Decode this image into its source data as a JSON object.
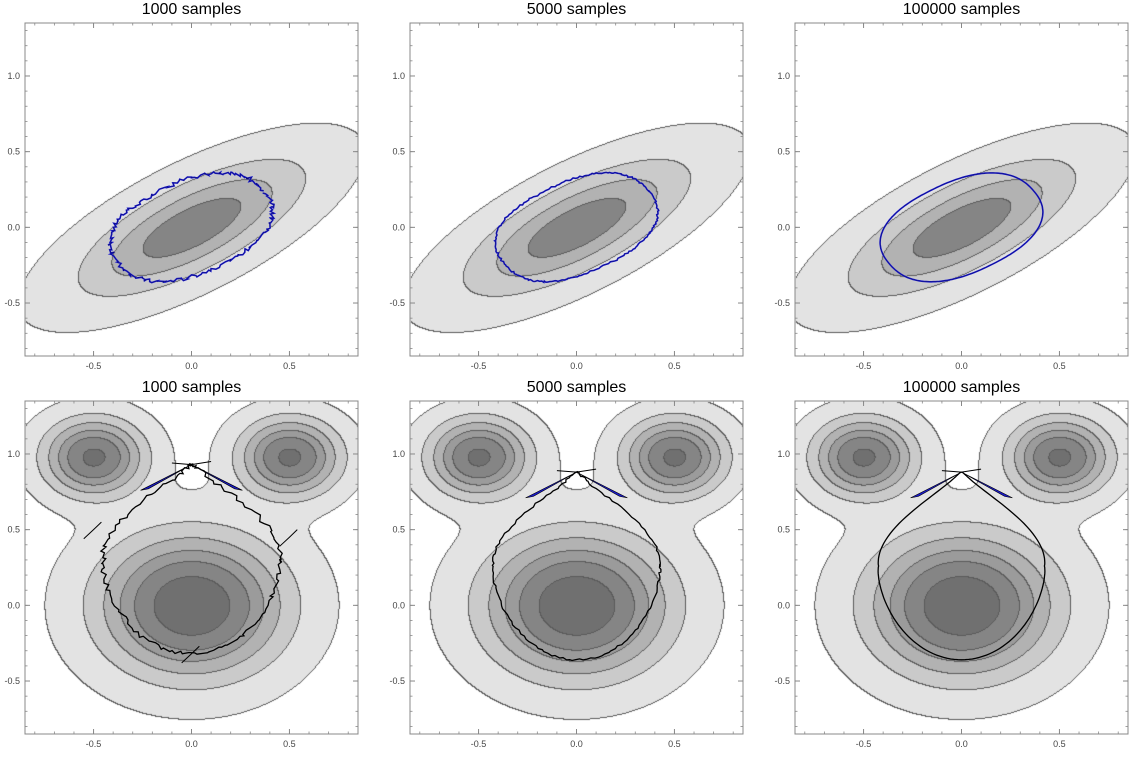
{
  "figure": {
    "description_rows": [
      "Gaussian",
      "bimodal"
    ],
    "colors": {
      "level_fills": [
        "#e3e3e3",
        "#cacaca",
        "#b2b2b2",
        "#9b9b9b",
        "#858585",
        "#707070"
      ],
      "contour_stroke": "#555555",
      "frame": "#888888",
      "curve_top": "#1a1acc",
      "curve_bottom": "#000000",
      "cusp_fill": "#1a1acc"
    }
  },
  "chart_data": [
    {
      "type": "contour",
      "title": "1000 samples",
      "distribution": "gaussian",
      "xlim": [
        -0.85,
        0.85
      ],
      "ylim": [
        -0.85,
        1.35
      ],
      "xticks": [
        -0.5,
        0.0,
        0.5
      ],
      "yticks": [
        -0.5,
        0.0,
        0.5,
        1.0
      ],
      "xtick_labels": [
        "-0.5",
        "0.0",
        "0.5"
      ],
      "ytick_labels": [
        "-0.5",
        "0.0",
        "0.5",
        "1.0"
      ],
      "ellipse_semi_axes": [
        0.44,
        0.29
      ],
      "ellipse_angle_deg": 33,
      "noise": 0.025
    },
    {
      "type": "contour",
      "title": "5000 samples",
      "distribution": "gaussian",
      "xlim": [
        -0.85,
        0.85
      ],
      "ylim": [
        -0.85,
        1.35
      ],
      "xticks": [
        -0.5,
        0.0,
        0.5
      ],
      "yticks": [
        -0.5,
        0.0,
        0.5,
        1.0
      ],
      "xtick_labels": [
        "-0.5",
        "0.0",
        "0.5"
      ],
      "ytick_labels": [
        "-0.5",
        "0.0",
        "0.5",
        "1.0"
      ],
      "ellipse_semi_axes": [
        0.44,
        0.29
      ],
      "ellipse_angle_deg": 33,
      "noise": 0.01
    },
    {
      "type": "contour",
      "title": "100000 samples",
      "distribution": "gaussian",
      "xlim": [
        -0.85,
        0.85
      ],
      "ylim": [
        -0.85,
        1.35
      ],
      "xticks": [
        -0.5,
        0.0,
        0.5
      ],
      "yticks": [
        -0.5,
        0.0,
        0.5,
        1.0
      ],
      "xtick_labels": [
        "-0.5",
        "0.0",
        "0.5"
      ],
      "ytick_labels": [
        "-0.5",
        "0.0",
        "0.5",
        "1.0"
      ],
      "ellipse_semi_axes": [
        0.44,
        0.29
      ],
      "ellipse_angle_deg": 33,
      "noise": 0.0
    },
    {
      "type": "contour",
      "title": "1000 samples",
      "distribution": "bimodal",
      "xlim": [
        -0.85,
        0.85
      ],
      "ylim": [
        -0.85,
        1.35
      ],
      "xticks": [
        -0.5,
        0.0,
        0.5
      ],
      "yticks": [
        -0.5,
        0.0,
        0.5,
        1.0
      ],
      "xtick_labels": [
        "-0.5",
        "0.0",
        "0.5"
      ],
      "ytick_labels": [
        "-0.5",
        "0.0",
        "0.5",
        "1.0"
      ],
      "curve_bottom_y": -0.32,
      "curve_side_x": 0.5,
      "curve_top_y": 0.93,
      "noise": 0.025
    },
    {
      "type": "contour",
      "title": "5000 samples",
      "distribution": "bimodal",
      "xlim": [
        -0.85,
        0.85
      ],
      "ylim": [
        -0.85,
        1.35
      ],
      "xticks": [
        -0.5,
        0.0,
        0.5
      ],
      "yticks": [
        -0.5,
        0.0,
        0.5,
        1.0
      ],
      "xtick_labels": [
        "-0.5",
        "0.0",
        "0.5"
      ],
      "ytick_labels": [
        "-0.5",
        "0.0",
        "0.5",
        "1.0"
      ],
      "curve_bottom_y": -0.36,
      "curve_side_x": 0.47,
      "curve_top_y": 0.88,
      "noise": 0.012
    },
    {
      "type": "contour",
      "title": "100000 samples",
      "distribution": "bimodal",
      "xlim": [
        -0.85,
        0.85
      ],
      "ylim": [
        -0.85,
        1.35
      ],
      "xticks": [
        -0.5,
        0.0,
        0.5
      ],
      "yticks": [
        -0.5,
        0.0,
        0.5,
        1.0
      ],
      "xtick_labels": [
        "-0.5",
        "0.0",
        "0.5"
      ],
      "ytick_labels": [
        "-0.5",
        "0.0",
        "0.5",
        "1.0"
      ],
      "curve_bottom_y": -0.36,
      "curve_side_x": 0.47,
      "curve_top_y": 0.88,
      "noise": 0.0
    }
  ]
}
